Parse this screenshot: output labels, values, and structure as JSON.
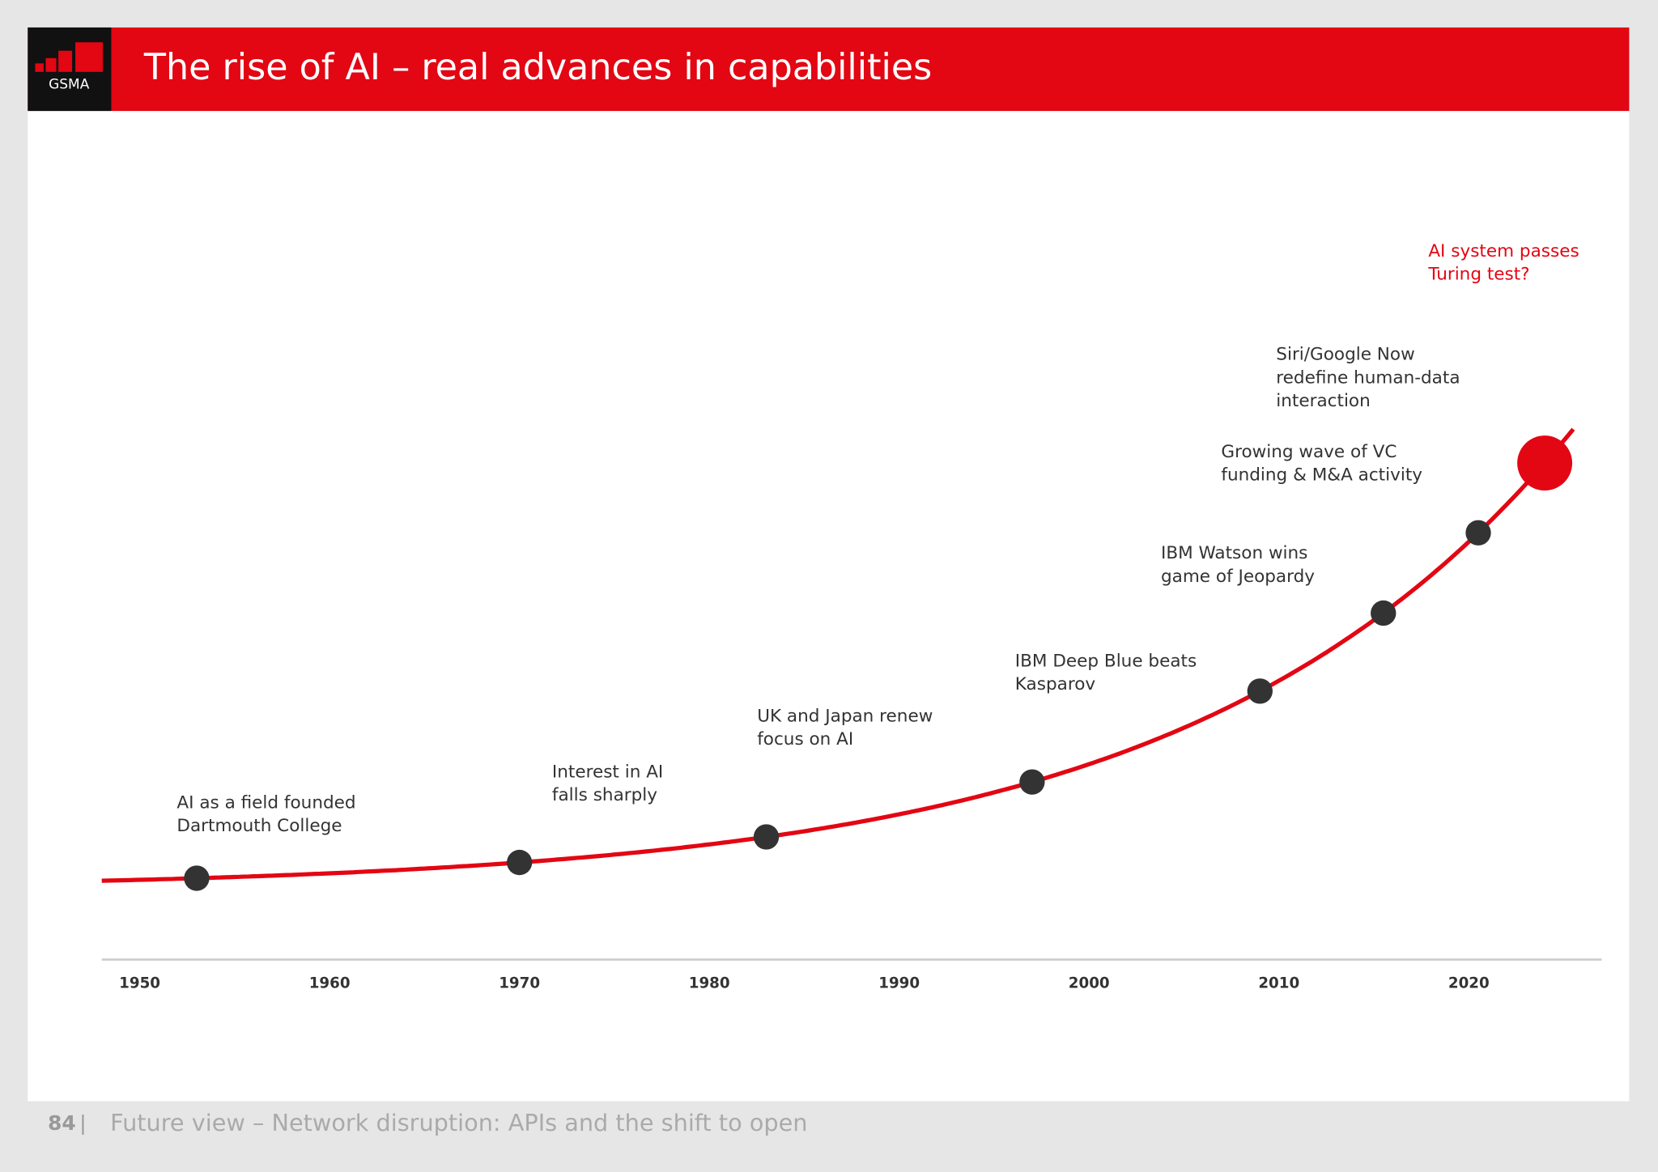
{
  "header": {
    "logo": "GSMA",
    "title": "The rise of AI – real advances in capabilities"
  },
  "chart_data": {
    "type": "timeline",
    "xlim": [
      1948,
      2027
    ],
    "xticks": [
      1950,
      1960,
      1970,
      1980,
      1990,
      2000,
      2010,
      2020
    ],
    "curve_color": "#e30613",
    "milestones": [
      {
        "x": 1953,
        "label": [
          "AI as a field founded",
          "Dartmouth College"
        ],
        "color": "#333333"
      },
      {
        "x": 1970,
        "label": [
          "Interest in AI",
          "falls sharply"
        ],
        "color": "#333333"
      },
      {
        "x": 1983,
        "label": [
          "UK and Japan renew",
          "focus on AI"
        ],
        "color": "#333333"
      },
      {
        "x": 1997,
        "label": [
          "IBM Deep Blue beats",
          "Kasparov"
        ],
        "color": "#333333"
      },
      {
        "x": 2009,
        "label": [
          "IBM Watson wins",
          "game of Jeopardy"
        ],
        "color": "#333333"
      },
      {
        "x": 2015.5,
        "label": [
          "Growing wave of VC",
          "funding & M&A activity"
        ],
        "color": "#333333"
      },
      {
        "x": 2020.5,
        "label": [
          "Siri/Google Now",
          "redefine human-data",
          "interaction"
        ],
        "color": "#333333"
      },
      {
        "x": 2024,
        "label": [
          "AI system passes",
          "Turing test?"
        ],
        "color": "#e30613"
      }
    ]
  },
  "footer": {
    "page": "84",
    "text": "Future view – Network disruption: APIs and the shift to open"
  }
}
